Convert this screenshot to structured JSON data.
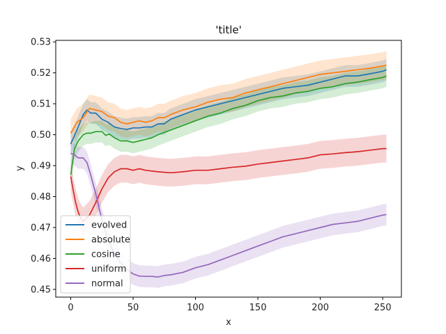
{
  "chart_data": {
    "type": "line",
    "title": "'title'",
    "xlabel": "x",
    "ylabel": "y",
    "xlim": [
      -12,
      265
    ],
    "ylim": [
      0.4475,
      0.5305
    ],
    "xticks": [
      0,
      50,
      100,
      150,
      200,
      250
    ],
    "yticks": [
      0.45,
      0.46,
      0.47,
      0.48,
      0.49,
      0.5,
      0.51,
      0.52,
      0.53
    ],
    "ytick_labels": [
      "0.45",
      "0.46",
      "0.47",
      "0.48",
      "0.49",
      "0.50",
      "0.51",
      "0.52",
      "0.53"
    ],
    "legend_position": "lower-left",
    "grid": false,
    "bands": "shaded spread around each series mean",
    "series": [
      {
        "name": "evolved",
        "color": "#1f77b4",
        "x": [
          0,
          5,
          10,
          13,
          16,
          20,
          25,
          30,
          35,
          40,
          45,
          50,
          55,
          60,
          65,
          70,
          75,
          80,
          90,
          100,
          110,
          120,
          130,
          140,
          150,
          160,
          170,
          180,
          190,
          200,
          210,
          220,
          230,
          240,
          250,
          253
        ],
        "y": [
          0.497,
          0.5015,
          0.5065,
          0.508,
          0.507,
          0.507,
          0.505,
          0.504,
          0.5025,
          0.502,
          0.5017,
          0.5022,
          0.5022,
          0.5025,
          0.5025,
          0.5035,
          0.5035,
          0.505,
          0.5065,
          0.508,
          0.509,
          0.51,
          0.511,
          0.512,
          0.513,
          0.514,
          0.515,
          0.5155,
          0.516,
          0.517,
          0.518,
          0.519,
          0.519,
          0.5197,
          0.5205,
          0.521
        ],
        "spread": 0.0035
      },
      {
        "name": "absolute",
        "color": "#ff7f0e",
        "x": [
          0,
          5,
          10,
          15,
          20,
          25,
          30,
          35,
          40,
          45,
          50,
          55,
          60,
          65,
          70,
          75,
          80,
          90,
          100,
          110,
          120,
          130,
          140,
          150,
          160,
          170,
          180,
          190,
          200,
          210,
          220,
          230,
          240,
          250,
          253
        ],
        "y": [
          0.5005,
          0.504,
          0.5055,
          0.5085,
          0.508,
          0.5075,
          0.506,
          0.5055,
          0.504,
          0.5035,
          0.504,
          0.5045,
          0.504,
          0.5045,
          0.5055,
          0.5055,
          0.5065,
          0.508,
          0.509,
          0.5105,
          0.5115,
          0.512,
          0.5135,
          0.5145,
          0.5155,
          0.5165,
          0.5175,
          0.5185,
          0.5195,
          0.52,
          0.5205,
          0.521,
          0.5215,
          0.5222,
          0.5225
        ],
        "spread": 0.0045
      },
      {
        "name": "cosine",
        "color": "#2ca02c",
        "x": [
          0,
          3,
          6,
          10,
          13,
          16,
          20,
          25,
          28,
          31,
          35,
          40,
          45,
          50,
          55,
          60,
          65,
          70,
          80,
          90,
          100,
          110,
          120,
          130,
          140,
          150,
          160,
          170,
          180,
          190,
          200,
          210,
          220,
          230,
          240,
          250,
          253
        ],
        "y": [
          0.487,
          0.4955,
          0.498,
          0.5,
          0.5005,
          0.5005,
          0.501,
          0.501,
          0.4998,
          0.5002,
          0.499,
          0.498,
          0.498,
          0.4975,
          0.498,
          0.4985,
          0.499,
          0.5,
          0.5015,
          0.503,
          0.5045,
          0.506,
          0.507,
          0.5085,
          0.5095,
          0.511,
          0.512,
          0.5125,
          0.5135,
          0.514,
          0.515,
          0.5155,
          0.5165,
          0.517,
          0.5178,
          0.5185,
          0.519
        ],
        "spread": 0.0035
      },
      {
        "name": "uniform",
        "color": "#d62728",
        "x": [
          0,
          2,
          4,
          6,
          8,
          10,
          12,
          15,
          20,
          25,
          30,
          35,
          40,
          45,
          50,
          55,
          60,
          70,
          80,
          90,
          100,
          110,
          120,
          130,
          140,
          150,
          160,
          170,
          180,
          190,
          200,
          210,
          220,
          230,
          240,
          250,
          253
        ],
        "y": [
          0.4865,
          0.482,
          0.478,
          0.475,
          0.473,
          0.472,
          0.4728,
          0.474,
          0.478,
          0.4825,
          0.486,
          0.488,
          0.489,
          0.489,
          0.4885,
          0.489,
          0.4885,
          0.488,
          0.4877,
          0.488,
          0.4885,
          0.4885,
          0.489,
          0.4895,
          0.4898,
          0.4905,
          0.491,
          0.4915,
          0.492,
          0.4925,
          0.4935,
          0.4938,
          0.4942,
          0.4945,
          0.495,
          0.4955,
          0.4955
        ],
        "spread": 0.0045
      },
      {
        "name": "normal",
        "color": "#9467bd",
        "x": [
          0,
          3,
          6,
          10,
          13,
          16,
          20,
          25,
          30,
          35,
          40,
          45,
          50,
          55,
          60,
          65,
          70,
          75,
          80,
          90,
          100,
          110,
          120,
          130,
          140,
          150,
          160,
          170,
          180,
          190,
          200,
          210,
          220,
          230,
          240,
          250,
          253
        ],
        "y": [
          0.494,
          0.4935,
          0.4925,
          0.4925,
          0.491,
          0.487,
          0.481,
          0.4725,
          0.466,
          0.4615,
          0.4585,
          0.4565,
          0.455,
          0.4543,
          0.4542,
          0.4542,
          0.454,
          0.4545,
          0.4547,
          0.4555,
          0.457,
          0.458,
          0.4595,
          0.461,
          0.4625,
          0.464,
          0.4655,
          0.467,
          0.468,
          0.469,
          0.47,
          0.471,
          0.4715,
          0.472,
          0.473,
          0.474,
          0.4742
        ],
        "spread": 0.0035
      }
    ]
  }
}
